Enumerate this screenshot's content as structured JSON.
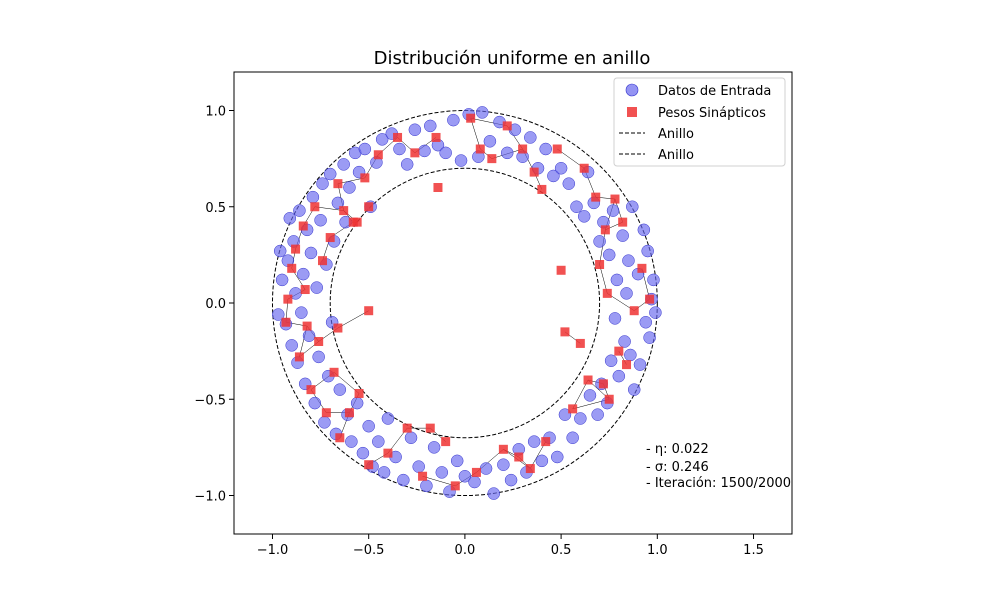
{
  "chart_data": {
    "type": "scatter",
    "title": "Distribución uniforme en anillo",
    "xlabel": "",
    "ylabel": "",
    "xlim": [
      -1.2,
      1.7
    ],
    "ylim": [
      -1.2,
      1.2
    ],
    "x_ticks": [
      -1.0,
      -0.5,
      0.0,
      0.5,
      1.0,
      1.5
    ],
    "y_ticks": [
      -1.0,
      -0.5,
      0.0,
      0.5,
      1.0
    ],
    "x_tick_labels": [
      "−1.0",
      "−0.5",
      "0.0",
      "0.5",
      "1.0",
      "1.5"
    ],
    "y_tick_labels": [
      "−1.0",
      "−0.5",
      "0.0",
      "0.5",
      "1.0"
    ],
    "grid": false,
    "legend_position": "top-right",
    "legend": [
      {
        "label": "Datos de Entrada",
        "marker": "circle",
        "color": "#6666ee"
      },
      {
        "label": "Pesos Sinápticos",
        "marker": "square",
        "color": "#ee3333"
      },
      {
        "label": "Anillo",
        "marker": "dashed-line",
        "color": "#000000"
      },
      {
        "label": "Anillo",
        "marker": "dashed-line",
        "color": "#000000"
      }
    ],
    "rings": [
      {
        "name": "Anillo",
        "radius": 1.0
      },
      {
        "name": "Anillo",
        "radius": 0.7
      }
    ],
    "annotations": {
      "eta": "- η: 0.022",
      "sigma": "- σ: 0.246",
      "iteration": "- Iteración: 1500/2000"
    },
    "series": [
      {
        "name": "Datos de Entrada",
        "color": "#6666ee",
        "points": [
          [
            -0.97,
            -0.06
          ],
          [
            -0.95,
            0.12
          ],
          [
            -0.96,
            0.27
          ],
          [
            -0.93,
            -0.11
          ],
          [
            -0.92,
            0.22
          ],
          [
            -0.91,
            0.44
          ],
          [
            -0.9,
            -0.22
          ],
          [
            -0.89,
            0.32
          ],
          [
            -0.88,
            0.05
          ],
          [
            -0.87,
            -0.31
          ],
          [
            -0.86,
            0.48
          ],
          [
            -0.85,
            -0.05
          ],
          [
            -0.84,
            0.15
          ],
          [
            -0.83,
            -0.42
          ],
          [
            -0.82,
            0.38
          ],
          [
            -0.81,
            -0.17
          ],
          [
            -0.8,
            0.26
          ],
          [
            -0.79,
            0.55
          ],
          [
            -0.78,
            -0.52
          ],
          [
            -0.77,
            0.08
          ],
          [
            -0.76,
            -0.28
          ],
          [
            -0.75,
            0.43
          ],
          [
            -0.74,
            0.62
          ],
          [
            -0.73,
            -0.62
          ],
          [
            -0.72,
            0.2
          ],
          [
            -0.71,
            -0.38
          ],
          [
            -0.7,
            0.67
          ],
          [
            -0.69,
            -0.1
          ],
          [
            -0.68,
            0.32
          ],
          [
            -0.67,
            -0.68
          ],
          [
            -0.66,
            0.52
          ],
          [
            -0.65,
            -0.45
          ],
          [
            -0.63,
            0.72
          ],
          [
            -0.62,
            0.42
          ],
          [
            -0.61,
            -0.58
          ],
          [
            -0.6,
            0.6
          ],
          [
            -0.59,
            -0.72
          ],
          [
            -0.57,
            0.78
          ],
          [
            -0.56,
            -0.52
          ],
          [
            -0.55,
            0.68
          ],
          [
            -0.53,
            -0.78
          ],
          [
            -0.52,
            0.8
          ],
          [
            -0.5,
            -0.64
          ],
          [
            -0.49,
            0.5
          ],
          [
            -0.48,
            -0.85
          ],
          [
            -0.46,
            0.73
          ],
          [
            -0.45,
            -0.72
          ],
          [
            -0.43,
            0.85
          ],
          [
            -0.42,
            -0.88
          ],
          [
            -0.4,
            -0.6
          ],
          [
            -0.38,
            0.88
          ],
          [
            -0.36,
            -0.8
          ],
          [
            -0.34,
            0.8
          ],
          [
            -0.32,
            -0.92
          ],
          [
            -0.3,
            0.72
          ],
          [
            -0.28,
            -0.7
          ],
          [
            -0.26,
            0.9
          ],
          [
            -0.24,
            -0.85
          ],
          [
            -0.21,
            0.79
          ],
          [
            -0.2,
            -0.95
          ],
          [
            -0.18,
            0.92
          ],
          [
            -0.16,
            -0.75
          ],
          [
            -0.14,
            0.82
          ],
          [
            -0.12,
            -0.88
          ],
          [
            -0.1,
            0.78
          ],
          [
            -0.08,
            -0.98
          ],
          [
            -0.06,
            0.95
          ],
          [
            -0.04,
            -0.82
          ],
          [
            -0.02,
            0.74
          ],
          [
            0.0,
            -0.9
          ],
          [
            0.02,
            0.98
          ],
          [
            0.05,
            -0.93
          ],
          [
            0.07,
            0.76
          ],
          [
            0.09,
            0.99
          ],
          [
            0.11,
            -0.86
          ],
          [
            0.13,
            0.84
          ],
          [
            0.15,
            -0.99
          ],
          [
            0.18,
            0.94
          ],
          [
            0.2,
            -0.84
          ],
          [
            0.22,
            0.78
          ],
          [
            0.24,
            -0.92
          ],
          [
            0.26,
            0.9
          ],
          [
            0.28,
            -0.76
          ],
          [
            0.3,
            0.76
          ],
          [
            0.32,
            -0.88
          ],
          [
            0.34,
            0.86
          ],
          [
            0.36,
            -0.72
          ],
          [
            0.38,
            0.7
          ],
          [
            0.4,
            -0.82
          ],
          [
            0.42,
            0.8
          ],
          [
            0.44,
            -0.7
          ],
          [
            0.46,
            0.66
          ],
          [
            0.48,
            -0.8
          ],
          [
            0.5,
            0.7
          ],
          [
            0.52,
            -0.58
          ],
          [
            0.54,
            0.62
          ],
          [
            0.56,
            -0.7
          ],
          [
            0.58,
            0.5
          ],
          [
            0.6,
            -0.6
          ],
          [
            0.62,
            0.45
          ],
          [
            0.64,
            0.68
          ],
          [
            0.65,
            -0.48
          ],
          [
            0.67,
            0.52
          ],
          [
            0.69,
            -0.58
          ],
          [
            0.7,
            0.32
          ],
          [
            0.71,
            -0.42
          ],
          [
            0.72,
            0.42
          ],
          [
            0.74,
            -0.52
          ],
          [
            0.75,
            0.25
          ],
          [
            0.76,
            -0.3
          ],
          [
            0.77,
            0.48
          ],
          [
            0.78,
            -0.08
          ],
          [
            0.79,
            0.12
          ],
          [
            0.8,
            -0.38
          ],
          [
            0.82,
            0.35
          ],
          [
            0.83,
            -0.2
          ],
          [
            0.84,
            0.05
          ],
          [
            0.85,
            0.22
          ],
          [
            0.86,
            -0.27
          ],
          [
            0.87,
            0.5
          ],
          [
            0.88,
            -0.45
          ],
          [
            0.9,
            0.15
          ],
          [
            0.91,
            -0.32
          ],
          [
            0.93,
            0.38
          ],
          [
            0.94,
            -0.1
          ],
          [
            0.95,
            0.27
          ],
          [
            0.96,
            -0.18
          ],
          [
            0.97,
            0.02
          ],
          [
            0.98,
            0.12
          ],
          [
            0.99,
            -0.05
          ]
        ]
      },
      {
        "name": "Pesos Sinápticos",
        "color": "#ee3333",
        "points": [
          [
            -0.93,
            -0.1
          ],
          [
            -0.92,
            0.02
          ],
          [
            -0.9,
            0.18
          ],
          [
            -0.88,
            0.28
          ],
          [
            -0.86,
            -0.28
          ],
          [
            -0.84,
            0.4
          ],
          [
            -0.83,
            0.07
          ],
          [
            -0.82,
            -0.12
          ],
          [
            -0.8,
            -0.45
          ],
          [
            -0.78,
            0.5
          ],
          [
            -0.76,
            -0.2
          ],
          [
            -0.74,
            0.22
          ],
          [
            -0.72,
            -0.57
          ],
          [
            -0.7,
            0.34
          ],
          [
            -0.68,
            -0.36
          ],
          [
            -0.66,
            0.62
          ],
          [
            -0.65,
            -0.7
          ],
          [
            -0.63,
            0.48
          ],
          [
            -0.6,
            -0.57
          ],
          [
            -0.58,
            0.42
          ],
          [
            -0.55,
            -0.47
          ],
          [
            -0.52,
            0.65
          ],
          [
            -0.5,
            -0.84
          ],
          [
            -0.45,
            0.77
          ],
          [
            -0.4,
            -0.78
          ],
          [
            -0.35,
            0.86
          ],
          [
            -0.3,
            -0.65
          ],
          [
            -0.26,
            0.78
          ],
          [
            -0.22,
            -0.9
          ],
          [
            -0.15,
            0.86
          ],
          [
            -0.1,
            -0.72
          ],
          [
            -0.05,
            -0.95
          ],
          [
            0.03,
            0.96
          ],
          [
            0.06,
            -0.88
          ],
          [
            0.08,
            0.8
          ],
          [
            0.14,
            0.75
          ],
          [
            0.2,
            -0.76
          ],
          [
            0.22,
            0.92
          ],
          [
            0.28,
            -0.8
          ],
          [
            0.3,
            0.8
          ],
          [
            0.34,
            -0.86
          ],
          [
            0.36,
            0.68
          ],
          [
            0.42,
            -0.72
          ],
          [
            0.48,
            0.8
          ],
          [
            0.56,
            -0.55
          ],
          [
            0.62,
            0.7
          ],
          [
            0.64,
            -0.4
          ],
          [
            0.68,
            0.55
          ],
          [
            0.7,
            0.2
          ],
          [
            0.72,
            -0.42
          ],
          [
            0.73,
            0.38
          ],
          [
            0.74,
            0.05
          ],
          [
            0.75,
            -0.5
          ],
          [
            0.78,
            0.54
          ],
          [
            0.8,
            -0.25
          ],
          [
            0.82,
            0.42
          ],
          [
            0.84,
            -0.32
          ],
          [
            0.88,
            -0.04
          ],
          [
            0.92,
            0.18
          ],
          [
            0.96,
            0.02
          ],
          [
            0.5,
            0.17
          ],
          [
            0.52,
            -0.15
          ],
          [
            0.6,
            -0.21
          ],
          [
            -0.14,
            0.6
          ],
          [
            -0.5,
            -0.04
          ],
          [
            -0.66,
            -0.13
          ],
          [
            -0.56,
            0.42
          ],
          [
            -0.5,
            0.5
          ],
          [
            0.4,
            0.59
          ],
          [
            -0.18,
            -0.65
          ]
        ]
      }
    ]
  }
}
